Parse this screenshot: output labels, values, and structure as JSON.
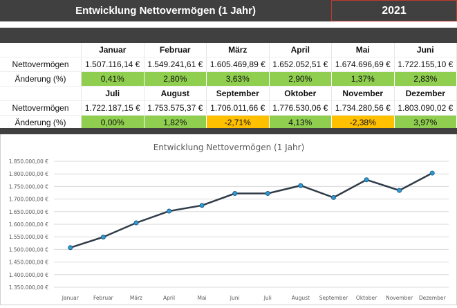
{
  "header": {
    "title": "Entwicklung Nettovermögen (1 Jahr)",
    "year": "2021"
  },
  "table": {
    "row_label_value": "Nettovermögen",
    "row_label_change": "Änderung (%)",
    "blocks": [
      {
        "months": [
          "Januar",
          "Februar",
          "März",
          "April",
          "Mai",
          "Juni"
        ],
        "values": [
          "1.507.116,14 €",
          "1.549.241,61 €",
          "1.605.469,89 €",
          "1.652.052,51 €",
          "1.674.696,69 €",
          "1.722.155,10 €"
        ],
        "changes": [
          "0,41%",
          "2,80%",
          "3,63%",
          "2,90%",
          "1,37%",
          "2,83%"
        ]
      },
      {
        "months": [
          "Juli",
          "August",
          "September",
          "Oktober",
          "November",
          "Dezember"
        ],
        "values": [
          "1.722.187,15 €",
          "1.753.575,37 €",
          "1.706.011,66 €",
          "1.776.530,06 €",
          "1.734.280,56 €",
          "1.803.090,02 €"
        ],
        "changes": [
          "0,00%",
          "1,82%",
          "-2,71%",
          "4,13%",
          "-2,38%",
          "3,97%"
        ]
      }
    ]
  },
  "colors": {
    "positive": "#8fce4f",
    "negative": "#ffc000",
    "header": "#404040",
    "line": "#2f3b47",
    "marker": "#2e9bd6"
  },
  "chart_data": {
    "type": "line",
    "title": "Entwicklung Nettovermögen (1 Jahr)",
    "categories": [
      "Januar",
      "Februar",
      "März",
      "April",
      "Mai",
      "Juni",
      "Juli",
      "August",
      "September",
      "Oktober",
      "November",
      "Dezember"
    ],
    "values": [
      1507116.14,
      1549241.61,
      1605469.89,
      1652052.51,
      1674696.69,
      1722155.1,
      1722187.15,
      1753575.37,
      1706011.66,
      1776530.06,
      1734280.56,
      1803090.02
    ],
    "ylim": [
      1350000,
      1850000
    ],
    "yticks": [
      "1.350.000,00 €",
      "1.400.000,00 €",
      "1.450.000,00 €",
      "1.500.000,00 €",
      "1.550.000,00 €",
      "1.600.000,00 €",
      "1.650.000,00 €",
      "1.700.000,00 €",
      "1.750.000,00 €",
      "1.800.000,00 €",
      "1.850.000,00 €"
    ],
    "grid": true,
    "legend": "none"
  }
}
